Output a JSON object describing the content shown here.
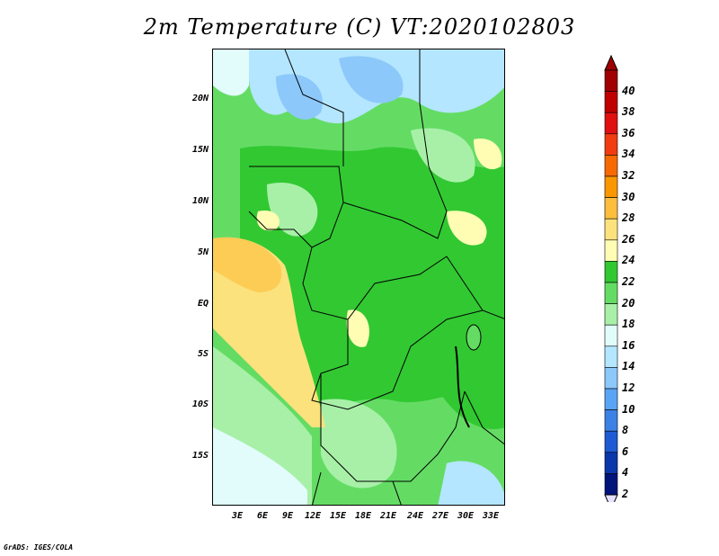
{
  "title": "2m Temperature (C) VT:2020102803",
  "footer": "GrADS: IGES/COLA",
  "map": {
    "lat_ticks": [
      "20N",
      "15N",
      "10N",
      "5N",
      "EQ",
      "5S",
      "10S",
      "15S"
    ],
    "lon_ticks": [
      "3E",
      "6E",
      "9E",
      "12E",
      "15E",
      "18E",
      "21E",
      "24E",
      "27E",
      "30E",
      "33E"
    ]
  },
  "colorbar": {
    "labels": [
      "40",
      "38",
      "36",
      "34",
      "32",
      "30",
      "28",
      "26",
      "24",
      "22",
      "20",
      "18",
      "16",
      "14",
      "12",
      "10",
      "8",
      "6",
      "4",
      "2"
    ],
    "colors": [
      "#a00000",
      "#c00000",
      "#e01010",
      "#f03c10",
      "#f86a00",
      "#fa9600",
      "#fcbe3c",
      "#fce27c",
      "#fffdb4",
      "#32c832",
      "#64dc64",
      "#a8f0a8",
      "#e2fcfc",
      "#b4e6ff",
      "#8cc8fa",
      "#5aa4f5",
      "#3c82e6",
      "#1e5ad2",
      "#0a37aa",
      "#00147a"
    ]
  }
}
